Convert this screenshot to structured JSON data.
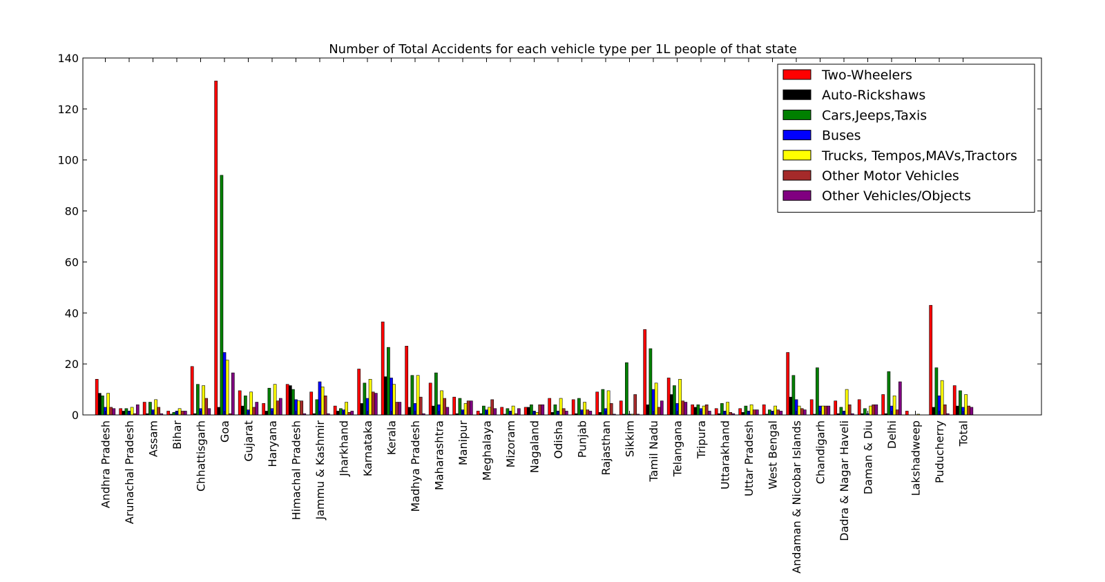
{
  "chart_data": {
    "type": "bar",
    "title": "Number of Total Accidents for each vehicle type per 1L people of that state",
    "xlabel": "",
    "ylabel": "",
    "ylim": [
      0,
      140
    ],
    "yticks": [
      0,
      20,
      40,
      60,
      80,
      100,
      120,
      140
    ],
    "grid": false,
    "legend_position": "top-right",
    "categories": [
      "Andhra Pradesh",
      "Arunachal Pradesh",
      "Assam",
      "Bihar",
      "Chhattisgarh",
      "Goa",
      "Gujarat",
      "Haryana",
      "Himachal Pradesh",
      "Jammu & Kashmir",
      "Jharkhand",
      "Karnataka",
      "Kerala",
      "Madhya Pradesh",
      "Maharashtra",
      "Manipur",
      "Meghalaya",
      "Mizoram",
      "Nagaland",
      "Odisha",
      "Punjab",
      "Rajasthan",
      "Sikkim",
      "Tamil Nadu",
      "Telangana",
      "Tripura",
      "Uttarakhand",
      "Uttar Pradesh",
      "West Bengal",
      "Andaman & Nicobar Islands",
      "Chandigarh",
      "Dadra & Nagar Haveli",
      "Daman & Diu",
      "Delhi",
      "Lakshadweep",
      "Puducherry",
      "Total"
    ],
    "series": [
      {
        "name": "Two-Wheelers",
        "color": "#ff0000",
        "values": [
          14,
          2.5,
          5,
          1.5,
          19,
          131,
          9.5,
          4.5,
          12,
          9,
          3.5,
          18,
          36.5,
          27,
          12.5,
          7,
          1.5,
          3,
          3,
          6.5,
          6,
          9,
          5.5,
          33.5,
          14.5,
          4,
          2.5,
          2.5,
          4,
          24.5,
          6,
          5.5,
          6,
          8,
          1.5,
          43,
          11.5
        ]
      },
      {
        "name": "Auto-Rickshaws",
        "color": "#000000",
        "values": [
          8.5,
          1.5,
          0.5,
          0.3,
          0.5,
          3,
          3.5,
          1.5,
          11.5,
          0.5,
          1.5,
          4.5,
          15,
          3,
          3.5,
          0.5,
          0.5,
          0.3,
          3,
          1,
          0.5,
          1,
          0.3,
          4,
          8,
          3,
          0.5,
          1,
          0.3,
          7,
          0.3,
          0.5,
          0.5,
          0.5,
          0,
          3,
          3.5
        ]
      },
      {
        "name": "Cars,Jeeps,Taxis",
        "color": "#008000",
        "values": [
          7.5,
          2.5,
          5,
          1,
          12,
          94,
          7.5,
          10.5,
          10,
          6,
          2.5,
          12.5,
          26.5,
          15.5,
          16.5,
          6.5,
          3.5,
          2.5,
          4,
          4,
          6.5,
          10,
          20.5,
          26,
          11.5,
          4,
          4.5,
          3.5,
          2,
          15.5,
          18.5,
          3,
          2.5,
          17,
          0,
          18.5,
          9.5
        ]
      },
      {
        "name": "Buses",
        "color": "#0000ff",
        "values": [
          3,
          1.5,
          2,
          1.5,
          2.5,
          24.5,
          2,
          2.5,
          6,
          13,
          2,
          6.5,
          14.5,
          4.5,
          4,
          2,
          2,
          1.5,
          1.5,
          1.5,
          2,
          2.5,
          0.3,
          10,
          4.5,
          2.5,
          1.5,
          1.5,
          1.5,
          6,
          3.5,
          1.5,
          0.5,
          3.5,
          0,
          7.5,
          3
        ]
      },
      {
        "name": "Trucks, Tempos,MAVs,Tractors",
        "color": "#ffff00",
        "values": [
          8.5,
          3,
          6,
          2.5,
          11.5,
          21.5,
          9,
          12,
          5.5,
          11,
          5,
          14,
          12,
          15.5,
          9.5,
          4.5,
          3,
          3.5,
          1,
          6.5,
          5,
          9.5,
          0.3,
          12.5,
          14,
          3.5,
          5,
          4,
          3.5,
          3.5,
          3.5,
          10,
          3.5,
          7.5,
          0.3,
          13.5,
          8
        ]
      },
      {
        "name": "Other Motor Vehicles",
        "color": "#a52a2a",
        "values": [
          3,
          0.5,
          3,
          1.5,
          6.5,
          0.5,
          3,
          5.5,
          5.5,
          7.5,
          1,
          9,
          5,
          7,
          6.5,
          5.5,
          6,
          0.5,
          4,
          2.5,
          2,
          4.5,
          8,
          3,
          5.5,
          4,
          1,
          2,
          2,
          2.5,
          3.5,
          4,
          4,
          2,
          0,
          4,
          3.5
        ]
      },
      {
        "name": "Other Vehicles/Objects",
        "color": "#800080",
        "values": [
          2.5,
          4,
          0.5,
          1.5,
          2.5,
          16.5,
          5,
          6.5,
          0.5,
          0.5,
          1.5,
          8.5,
          5,
          0.5,
          3,
          5.5,
          2.5,
          2.5,
          4,
          1.5,
          1.5,
          0.3,
          0.3,
          5.5,
          5,
          1.5,
          0.5,
          2,
          1.5,
          2,
          3.5,
          0.5,
          4,
          13,
          0,
          0.5,
          3
        ]
      }
    ]
  }
}
